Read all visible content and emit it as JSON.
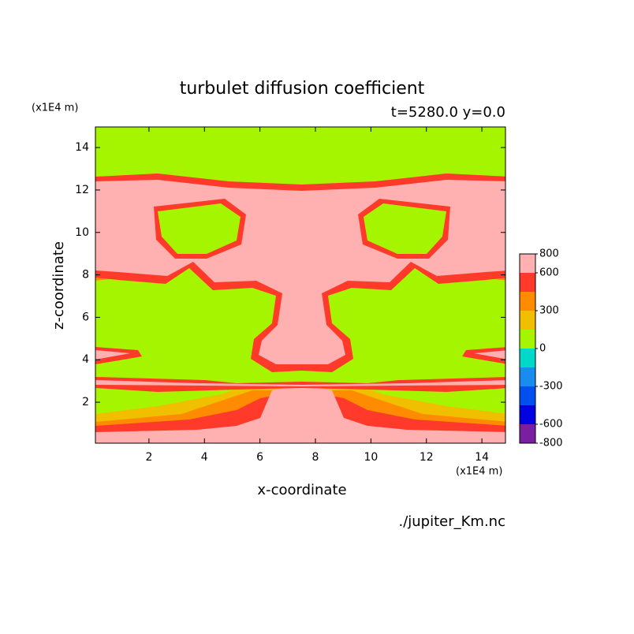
{
  "chart_data": {
    "type": "contour",
    "title": "turbulet diffusion coefficient",
    "subtitle": "t=5280.0 y=0.0",
    "y_unit": "(x1E4 m)",
    "x_unit": "(x1E4 m)",
    "x_label": "x-coordinate",
    "y_label": "z-coordinate",
    "source": "./jupiter_Km.nc",
    "xlim": [
      0.07,
      14.85
    ],
    "ylim": [
      0.07,
      14.97
    ],
    "xticks": [
      2,
      4,
      6,
      8,
      10,
      12,
      14
    ],
    "yticks": [
      2,
      4,
      6,
      8,
      10,
      12,
      14
    ],
    "colorbar": {
      "levels": [
        -800,
        -600,
        -450,
        -300,
        -150,
        0,
        150,
        300,
        450,
        600,
        800
      ],
      "colors": [
        "#7a1fa0",
        "#0000e0",
        "#0050f0",
        "#1a8cf0",
        "#00d8c8",
        "#a6f500",
        "#f0c000",
        "#ff8c00",
        "#ff3a2a",
        "#ffb0b0"
      ],
      "ticks": [
        800,
        600,
        300,
        0,
        -300,
        -600,
        -800
      ]
    }
  }
}
